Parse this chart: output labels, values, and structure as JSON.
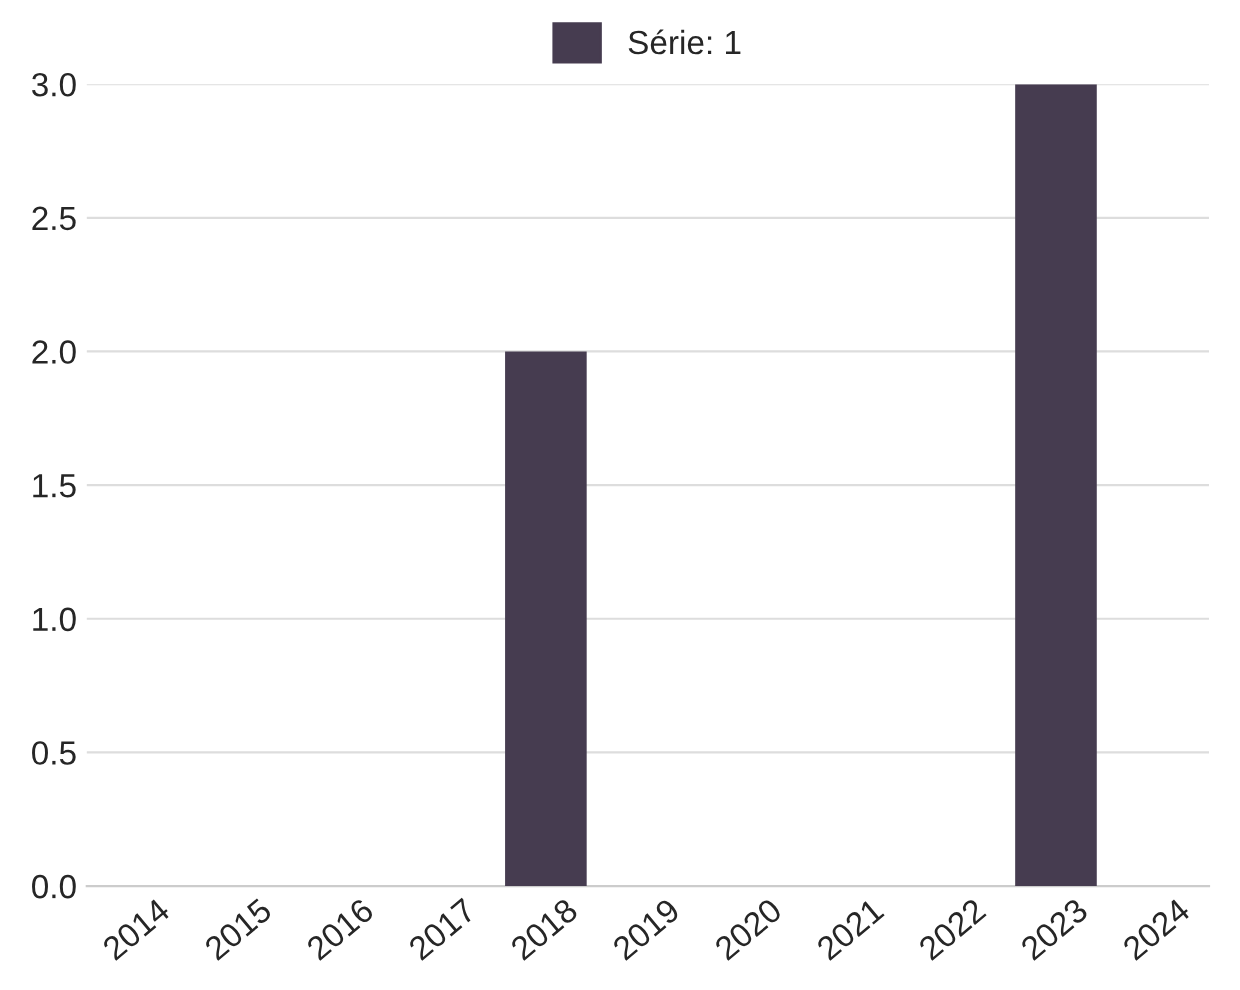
{
  "chart_data": {
    "type": "bar",
    "categories": [
      "2014",
      "2015",
      "2016",
      "2017",
      "2018",
      "2019",
      "2020",
      "2021",
      "2022",
      "2023",
      "2024"
    ],
    "series": [
      {
        "name": "Série: 1",
        "color": "#463c50",
        "values": [
          0,
          0,
          0,
          0,
          2.0,
          0,
          0,
          0,
          0,
          3.0,
          0
        ]
      }
    ],
    "ylim": [
      0,
      3.0
    ],
    "yticks": [
      {
        "value": 0,
        "label": "0.0"
      },
      {
        "value": 0.5,
        "label": "0.5"
      },
      {
        "value": 1.0,
        "label": "1.0"
      },
      {
        "value": 1.5,
        "label": "1.5"
      },
      {
        "value": 2.0,
        "label": "2.0"
      },
      {
        "value": 2.5,
        "label": "2.5"
      },
      {
        "value": 3.0,
        "label": "3.0"
      }
    ],
    "grid": "y",
    "legend": "top"
  }
}
